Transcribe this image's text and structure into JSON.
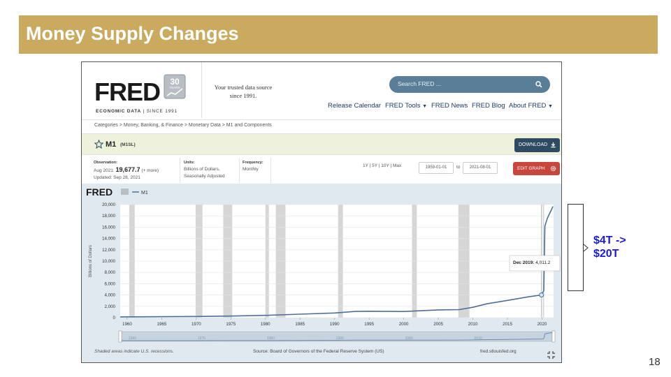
{
  "slide": {
    "title": "Money Supply Changes",
    "number": "18",
    "annotation_line1": "$4T ->",
    "annotation_line2": "$20T"
  },
  "header": {
    "logo_text": "FRED",
    "logo_subtitle_bold": "ECONOMIC DATA",
    "logo_subtitle_rest": "| SINCE 1991",
    "badge_number": "30",
    "badge_text": "YEARS",
    "tagline_line1": "Your trusted data source",
    "tagline_line2": "since 1991.",
    "search_placeholder": "Search FRED ...",
    "nav": [
      "Release Calendar",
      "FRED Tools",
      "FRED News",
      "FRED Blog",
      "About FRED"
    ]
  },
  "breadcrumb": "Categories > Money, Banking, & Finance > Monetary Data > M1 and Components",
  "series": {
    "name": "M1",
    "id": "(M1SL)",
    "download_label": "DOWNLOAD"
  },
  "meta": {
    "observation_label": "Observation:",
    "observation_date": "Aug 2021:",
    "observation_value": "19,677.7",
    "observation_more": "(+ more)",
    "updated": "Updated: Sep 28, 2021",
    "units_label": "Units:",
    "units_line1": "Billions of Dollars,",
    "units_line2": "Seasonally Adjusted",
    "frequency_label": "Frequency:",
    "frequency": "Monthly",
    "range_links": "1Y | 5Y | 10Y | Max",
    "start_date": "1959-01-01",
    "to_label": "to",
    "end_date": "2021-08-01",
    "edit_graph_label": "EDIT GRAPH"
  },
  "chart_footer": {
    "recession_note": "Shaded areas indicate U.S. recessions.",
    "source": "Source: Board of Governors of the Federal Reserve System (US)",
    "site": "fred.stlouisfed.org"
  },
  "tooltip": {
    "label": "Dec 2019:",
    "value": "4,011.2"
  },
  "colors": {
    "title_bar": "#c9aa5f",
    "line": "#4e6f99",
    "plot_bg": "#e1e9f0",
    "recession_shade": "#d6d6d6",
    "annotation": "#1a1ad6"
  },
  "chart_data": {
    "type": "line",
    "legend": "M1",
    "ylabel": "Billions of Dollars",
    "ylim": [
      0,
      20000
    ],
    "xlim": [
      1959,
      2021.67
    ],
    "y_ticks": [
      "0",
      "2,000",
      "4,000",
      "6,000",
      "8,000",
      "10,000",
      "12,000",
      "14,000",
      "16,000",
      "18,000",
      "20,000"
    ],
    "x_ticks": [
      "1960",
      "1965",
      "1970",
      "1975",
      "1980",
      "1985",
      "1990",
      "1995",
      "2000",
      "2005",
      "2010",
      "2015",
      "2020"
    ],
    "navigator_ticks": [
      "1960",
      "1970",
      "1980",
      "1990",
      "2000",
      "2010"
    ],
    "recessions": [
      [
        1960.3,
        1961.1
      ],
      [
        1969.9,
        1970.9
      ],
      [
        1973.9,
        1975.2
      ],
      [
        1980.0,
        1980.5
      ],
      [
        1981.5,
        1982.9
      ],
      [
        1990.5,
        1991.2
      ],
      [
        2001.2,
        2001.9
      ],
      [
        2007.9,
        2009.5
      ],
      [
        2020.1,
        2020.3
      ]
    ],
    "series": [
      {
        "name": "M1",
        "x": [
          1959,
          1965,
          1970,
          1975,
          1980,
          1985,
          1990,
          1993,
          1995,
          2000,
          2005,
          2008,
          2010,
          2012,
          2015,
          2018,
          2019.92,
          2020.25,
          2020.42,
          2020.5,
          2020.75,
          2021,
          2021.33,
          2021.58
        ],
        "y": [
          139,
          168,
          214,
          287,
          408,
          620,
          825,
          1100,
          1140,
          1090,
          1370,
          1420,
          1830,
          2440,
          3050,
          3680,
          4011,
          4790,
          16200,
          16500,
          17500,
          18200,
          19000,
          19678
        ]
      }
    ]
  }
}
